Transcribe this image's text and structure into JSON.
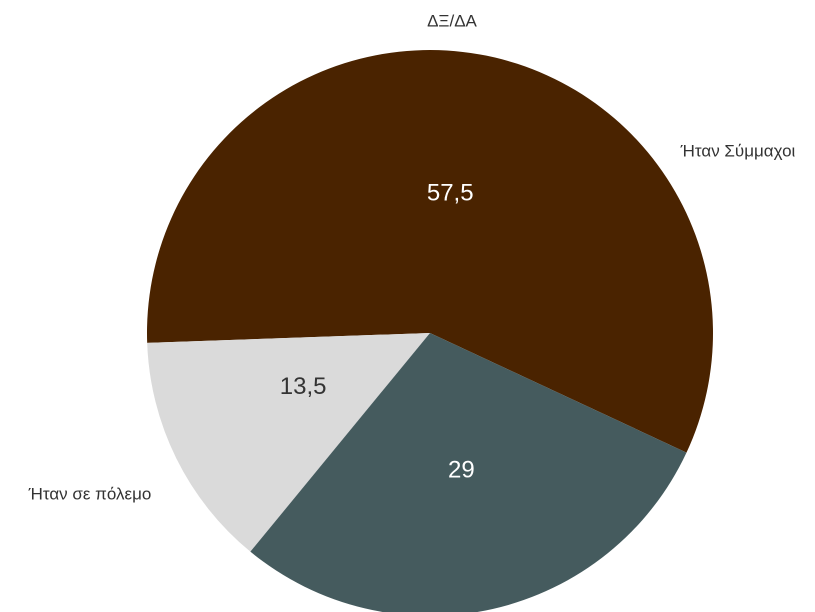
{
  "chart_data": {
    "type": "pie",
    "title": "",
    "series": [
      {
        "name": "Ήταν σε πόλεμο",
        "value": 57.5,
        "display": "57,5",
        "color": "#4a2300",
        "value_color": "#ffffff"
      },
      {
        "name": "ΔΞ/ΔΑ",
        "value": 13.5,
        "display": "13,5",
        "color": "#dadada",
        "value_color": "#333333"
      },
      {
        "name": "Ήταν Σύμμαχοι",
        "value": 29,
        "display": "29",
        "color": "#455b5e",
        "value_color": "#ffffff"
      }
    ],
    "start_angle_deg": -25,
    "direction": "counterclockwise",
    "legend": "none",
    "labels": "outside"
  }
}
